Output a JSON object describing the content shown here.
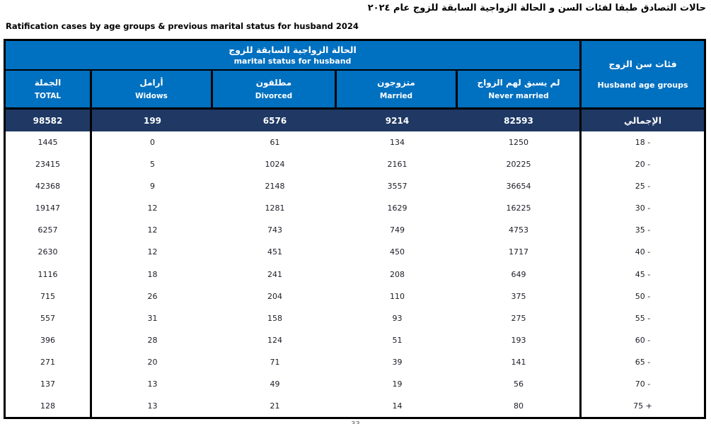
{
  "page": {
    "title_ar": "حالات التصادق طبقا لفئات السن و الحالة الزواجية السابقة للزوج  عام ٢٠٢٤",
    "title_en": "Ratification cases by age groups & previous marital status for husband 2024",
    "page_number": "33"
  },
  "colors": {
    "header_blue": "#0070C0",
    "total_navy": "#1F3864",
    "border": "#000000"
  },
  "table": {
    "group_header": {
      "ar": "الحالة الزواجية السابقة للزوج",
      "en": "marital status for husband"
    },
    "age_header": {
      "ar": "فئات سن الزوج",
      "en": "Husband age groups"
    },
    "columns": [
      {
        "ar": "الجملة",
        "en": "TOTAL"
      },
      {
        "ar": "أرامل",
        "en": "Widows"
      },
      {
        "ar": "مطلقون",
        "en": "Divorced"
      },
      {
        "ar": "متزوجون",
        "en": "Married"
      },
      {
        "ar": "لم يسبق لهم الزواج",
        "en": "Never married"
      }
    ],
    "total_row": {
      "label_ar": "الإجمالي",
      "total": "98582",
      "widows": "199",
      "divorced": "6576",
      "married": "9214",
      "never_married": "82593"
    },
    "rows": [
      {
        "age": "18 -",
        "total": "1445",
        "widows": "0",
        "divorced": "61",
        "married": "134",
        "never_married": "1250"
      },
      {
        "age": "20 -",
        "total": "23415",
        "widows": "5",
        "divorced": "1024",
        "married": "2161",
        "never_married": "20225"
      },
      {
        "age": "25 -",
        "total": "42368",
        "widows": "9",
        "divorced": "2148",
        "married": "3557",
        "never_married": "36654"
      },
      {
        "age": "30 -",
        "total": "19147",
        "widows": "12",
        "divorced": "1281",
        "married": "1629",
        "never_married": "16225"
      },
      {
        "age": "35 -",
        "total": "6257",
        "widows": "12",
        "divorced": "743",
        "married": "749",
        "never_married": "4753"
      },
      {
        "age": "40 -",
        "total": "2630",
        "widows": "12",
        "divorced": "451",
        "married": "450",
        "never_married": "1717"
      },
      {
        "age": "45 -",
        "total": "1116",
        "widows": "18",
        "divorced": "241",
        "married": "208",
        "never_married": "649"
      },
      {
        "age": "50 -",
        "total": "715",
        "widows": "26",
        "divorced": "204",
        "married": "110",
        "never_married": "375"
      },
      {
        "age": "55 -",
        "total": "557",
        "widows": "31",
        "divorced": "158",
        "married": "93",
        "never_married": "275"
      },
      {
        "age": "60 -",
        "total": "396",
        "widows": "28",
        "divorced": "124",
        "married": "51",
        "never_married": "193"
      },
      {
        "age": "65 -",
        "total": "271",
        "widows": "20",
        "divorced": "71",
        "married": "39",
        "never_married": "141"
      },
      {
        "age": "70 -",
        "total": "137",
        "widows": "13",
        "divorced": "49",
        "married": "19",
        "never_married": "56"
      },
      {
        "age": "75 +",
        "total": "128",
        "widows": "13",
        "divorced": "21",
        "married": "14",
        "never_married": "80"
      }
    ]
  }
}
